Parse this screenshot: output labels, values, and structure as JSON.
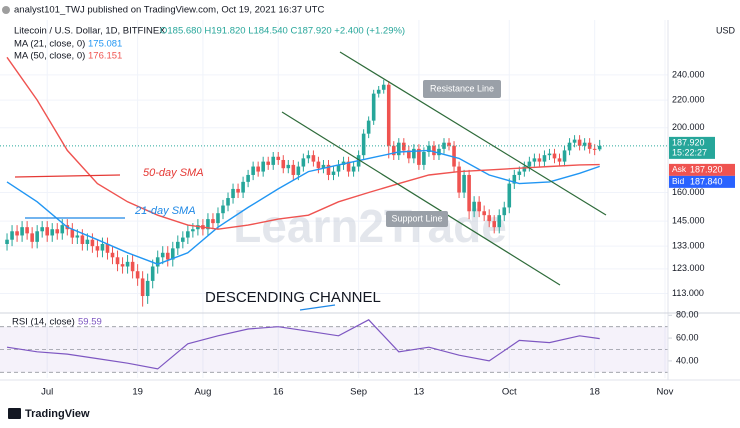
{
  "header": "analyst101_TWJ published on TradingView.com, Oct 19, 2021 16:37 UTC",
  "footer": "TradingView",
  "chart_data": {
    "type": "candlestick",
    "symbol": "Litecoin / U.S. Dollar, 1D, BITFINEX",
    "ohlc_readout": "O185.680 H191.820 L184.540 C187.920 +2.400 (+1.29%)",
    "currency": "USD",
    "xlim": [
      -1.4,
      131.6
    ],
    "xticks": [
      {
        "value": 8,
        "label": "Jul"
      },
      {
        "value": 26,
        "label": "19"
      },
      {
        "value": 39,
        "label": "Aug"
      },
      {
        "value": 54,
        "label": "16"
      },
      {
        "value": 70,
        "label": "Sep"
      },
      {
        "value": 82,
        "label": "13"
      },
      {
        "value": 100,
        "label": "Oct"
      },
      {
        "value": 117,
        "label": "18"
      },
      {
        "value": 131,
        "label": "Nov"
      }
    ],
    "ylim": [
      106,
      290
    ],
    "log_scale": true,
    "yticks": [
      {
        "value": 240,
        "label": "240.000"
      },
      {
        "value": 220,
        "label": "220.000"
      },
      {
        "value": 200,
        "label": "200.000"
      },
      {
        "value": 160,
        "label": "160.000"
      },
      {
        "value": 145,
        "label": "145.000"
      },
      {
        "value": 133,
        "label": "133.000"
      },
      {
        "value": 123,
        "label": "123.000"
      },
      {
        "value": 113,
        "label": "113.000"
      }
    ],
    "grid": true,
    "up_color": "#26a69a",
    "down_color": "#ef5350",
    "open": [
      134,
      136,
      140,
      138,
      142,
      139,
      135,
      140,
      142,
      138,
      141,
      139,
      143,
      141,
      137,
      138,
      134,
      136,
      133,
      131,
      134,
      130,
      128,
      125,
      124,
      126,
      122,
      119,
      112,
      118,
      124,
      128,
      130,
      127,
      132,
      135,
      137,
      140,
      141,
      143,
      141,
      146,
      144,
      149,
      153,
      157,
      162,
      160,
      166,
      170,
      175,
      172,
      178,
      176,
      181,
      179,
      174,
      176,
      170,
      175,
      180,
      182,
      178,
      174,
      176,
      170,
      172,
      176,
      178,
      172,
      175,
      182,
      196,
      205,
      225,
      228,
      232,
      188,
      182,
      190,
      185,
      180,
      186,
      176,
      184,
      188,
      182,
      186,
      190,
      188,
      175,
      160,
      170,
      150,
      155,
      150,
      148,
      145,
      142,
      148,
      152,
      165,
      170,
      172,
      175,
      178,
      180,
      178,
      182,
      183,
      180,
      178,
      185,
      190,
      192,
      188,
      190,
      186,
      185.68
    ],
    "high": [
      139,
      143,
      143,
      145,
      145,
      142,
      143,
      145,
      145,
      144,
      144,
      146,
      146,
      144,
      141,
      141,
      139,
      139,
      136,
      137,
      137,
      133,
      131,
      128,
      129,
      129,
      125,
      122,
      121,
      127,
      131,
      133,
      133,
      135,
      138,
      140,
      143,
      144,
      146,
      146,
      149,
      149,
      152,
      156,
      160,
      165,
      165,
      169,
      173,
      178,
      178,
      181,
      181,
      184,
      184,
      182,
      179,
      179,
      178,
      183,
      185,
      185,
      181,
      179,
      179,
      175,
      179,
      181,
      181,
      178,
      185,
      199,
      208,
      228,
      231,
      236,
      235,
      191,
      193,
      193,
      188,
      189,
      189,
      187,
      191,
      191,
      189,
      193,
      193,
      191,
      178,
      173,
      173,
      158,
      158,
      153,
      151,
      148,
      151,
      155,
      168,
      173,
      175,
      178,
      181,
      183,
      183,
      185,
      186,
      186,
      183,
      188,
      193,
      195,
      195,
      193,
      193,
      189,
      191.82
    ],
    "low": [
      131,
      133,
      135,
      135,
      136,
      132,
      132,
      137,
      135,
      135,
      136,
      136,
      138,
      134,
      134,
      131,
      131,
      130,
      128,
      128,
      127,
      125,
      122,
      121,
      121,
      119,
      116,
      108,
      109,
      115,
      121,
      125,
      124,
      124,
      129,
      132,
      134,
      137,
      138,
      138,
      138,
      141,
      141,
      146,
      150,
      154,
      157,
      157,
      163,
      167,
      169,
      169,
      173,
      173,
      176,
      171,
      171,
      167,
      167,
      172,
      177,
      175,
      171,
      171,
      167,
      167,
      169,
      173,
      169,
      169,
      172,
      179,
      193,
      202,
      222,
      225,
      180,
      179,
      179,
      182,
      177,
      177,
      173,
      173,
      181,
      179,
      179,
      183,
      185,
      172,
      157,
      157,
      146,
      147,
      147,
      145,
      142,
      139,
      139,
      145,
      149,
      162,
      167,
      169,
      172,
      175,
      175,
      175,
      179,
      177,
      175,
      175,
      182,
      187,
      185,
      185,
      183,
      182,
      184.54
    ],
    "close": [
      136,
      140,
      138,
      142,
      139,
      135,
      140,
      142,
      138,
      141,
      139,
      143,
      141,
      137,
      138,
      134,
      136,
      133,
      131,
      134,
      130,
      128,
      125,
      124,
      126,
      122,
      119,
      112,
      118,
      124,
      128,
      130,
      127,
      132,
      135,
      137,
      140,
      141,
      143,
      141,
      146,
      144,
      149,
      153,
      157,
      162,
      160,
      166,
      170,
      175,
      172,
      178,
      176,
      181,
      179,
      174,
      176,
      170,
      175,
      180,
      182,
      178,
      174,
      176,
      170,
      172,
      176,
      178,
      172,
      175,
      182,
      196,
      205,
      225,
      228,
      232,
      188,
      182,
      190,
      185,
      180,
      186,
      176,
      184,
      188,
      182,
      186,
      190,
      188,
      175,
      160,
      170,
      150,
      155,
      150,
      148,
      145,
      142,
      148,
      152,
      165,
      170,
      172,
      175,
      178,
      180,
      178,
      182,
      183,
      180,
      178,
      185,
      190,
      192,
      188,
      190,
      186,
      185.68,
      187.92
    ],
    "overlays": [
      {
        "name": "MA (21, close, 0)",
        "last_label": "175.081",
        "color": "#2196f3",
        "x": [
          0,
          6,
          12,
          18,
          24,
          30,
          36,
          42,
          48,
          54,
          60,
          66,
          72,
          78,
          84,
          90,
          96,
          102,
          108,
          114,
          118
        ],
        "values": [
          166,
          155,
          142,
          136,
          130,
          125,
          130,
          142,
          152,
          162,
          172,
          176,
          180,
          184,
          185,
          180,
          170,
          165,
          166,
          171,
          175.081
        ]
      },
      {
        "name": "MA (50, close, 0)",
        "last_label": "176.151",
        "color": "#ef5350",
        "x": [
          0,
          6,
          12,
          18,
          24,
          30,
          36,
          42,
          48,
          54,
          60,
          66,
          72,
          78,
          84,
          90,
          96,
          102,
          108,
          114,
          118
        ],
        "values": [
          255,
          220,
          185,
          165,
          155,
          148,
          143,
          141,
          143,
          146,
          148,
          155,
          160,
          165,
          170,
          172,
          173,
          174,
          175,
          176,
          176.151
        ]
      }
    ],
    "last_price": {
      "value": 187.92,
      "label": "187.920",
      "countdown": "15:22:27"
    },
    "ask": {
      "name": "Ask",
      "value": 187.92,
      "label": "187.920"
    },
    "bid": {
      "name": "Bid",
      "value": 187.84,
      "label": "187.840"
    },
    "annotations": [
      "50-day SMA",
      "21-day SMA",
      "Resistance Line",
      "Support Line",
      "DESCENDING CHANNEL"
    ],
    "watermark": "Learn2Trade",
    "rsi": {
      "name": "RSI (14, close)",
      "last_label": "59.59",
      "color": "#7e57c2",
      "ylim": [
        25,
        82
      ],
      "yticks": [
        {
          "value": 80,
          "label": "80.00"
        },
        {
          "value": 60,
          "label": "60.00"
        },
        {
          "value": 40,
          "label": "40.00"
        }
      ],
      "levels": [
        70,
        50,
        30
      ],
      "x": [
        0,
        6,
        12,
        18,
        24,
        30,
        36,
        42,
        48,
        54,
        60,
        66,
        72,
        78,
        84,
        90,
        96,
        102,
        108,
        114,
        118
      ],
      "values": [
        52,
        48,
        46,
        42,
        38,
        33,
        55,
        62,
        68,
        70,
        66,
        62,
        76,
        48,
        52,
        45,
        40,
        58,
        56,
        62,
        59.59
      ]
    }
  }
}
